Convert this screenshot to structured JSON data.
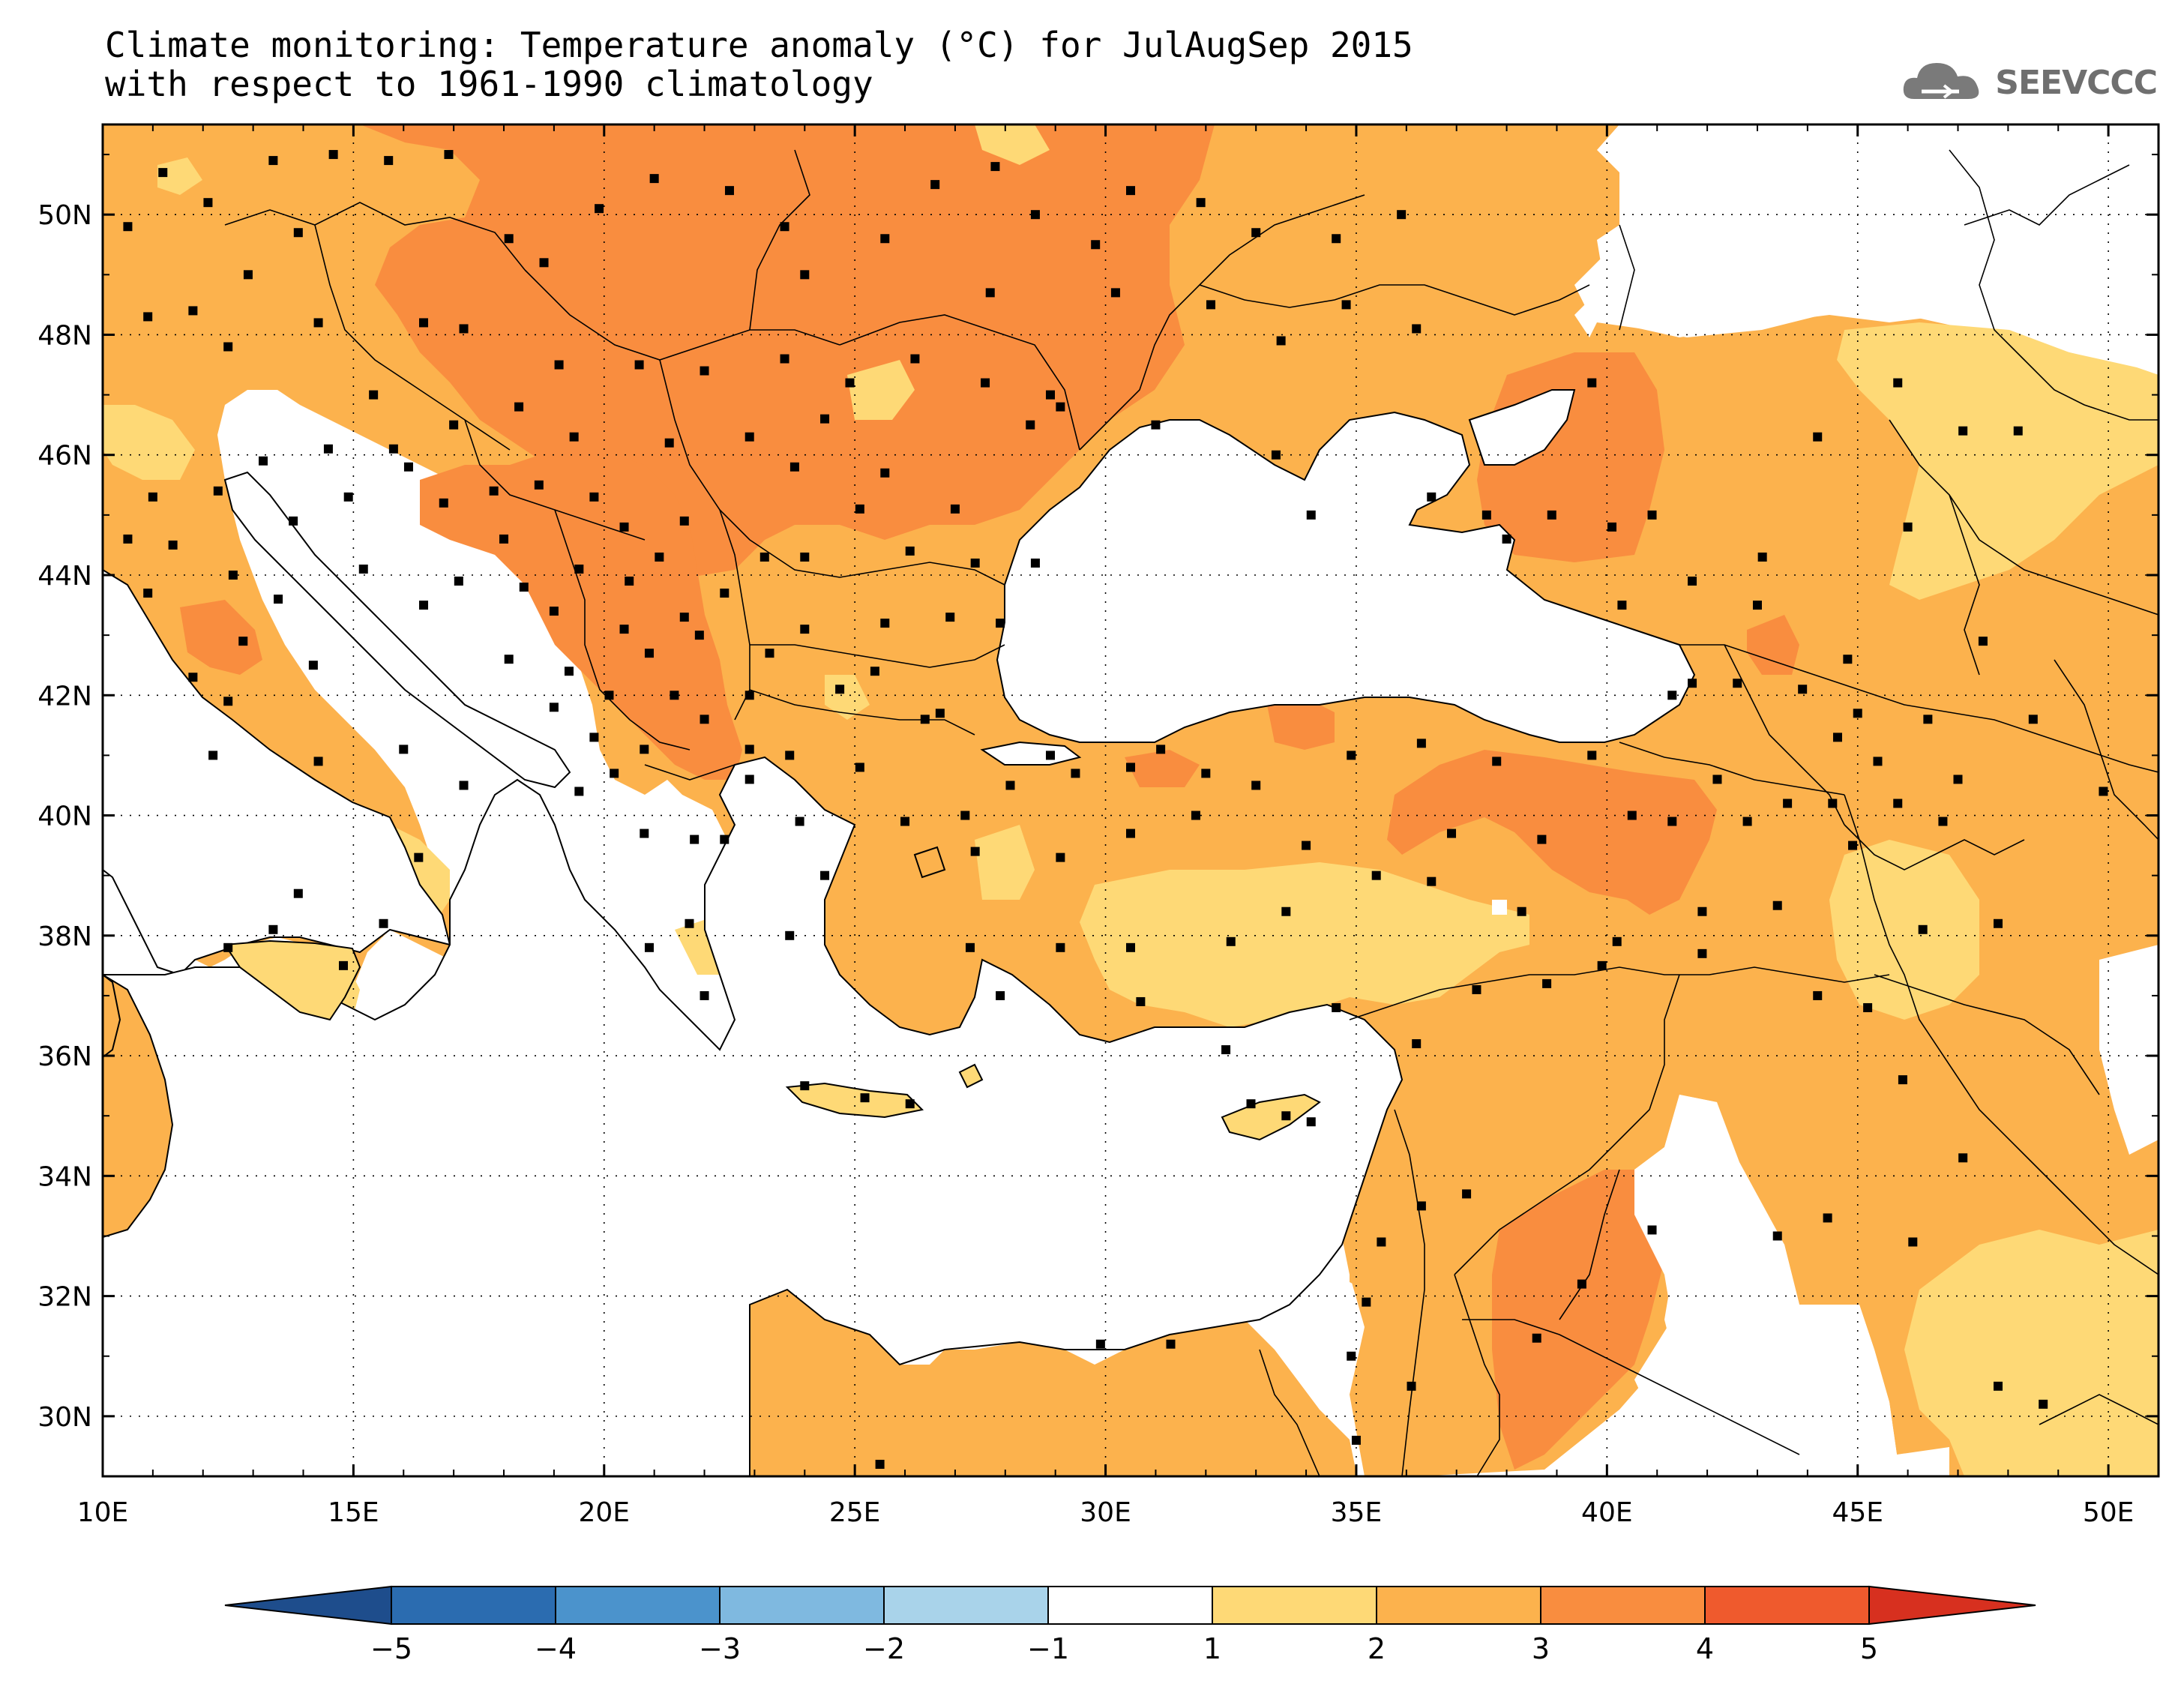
{
  "header": {
    "title_line1": "Climate monitoring: Temperature anomaly (°C) for JulAugSep 2015",
    "title_line2": "with respect to 1961-1990 climatology",
    "logo_text": "SEEVCCC"
  },
  "map": {
    "lon_ticks": [
      "10E",
      "15E",
      "20E",
      "25E",
      "30E",
      "35E",
      "40E",
      "45E",
      "50E"
    ],
    "lat_ticks": [
      "50N",
      "48N",
      "46N",
      "44N",
      "42N",
      "40N",
      "38N",
      "36N",
      "34N",
      "32N",
      "30N"
    ]
  },
  "colorbar": {
    "labels": [
      "-5",
      "-4",
      "-3",
      "-2",
      "-1",
      "1",
      "2",
      "3",
      "4",
      "5"
    ],
    "colors": [
      "#1e4d8c",
      "#2b6cb0",
      "#4b93cc",
      "#7fb9e0",
      "#a9d3ea",
      "#ffffff",
      "#fed976",
      "#fcb24d",
      "#f98d3f",
      "#ef5a2d",
      "#d7301f"
    ]
  },
  "palette": {
    "ocean": "#ffffff",
    "anomaly_1_2": "#fed976",
    "anomaly_2_3": "#fcb24d",
    "anomaly_3_4": "#f98d3f",
    "station": "#000000",
    "logo": "#6f6f6f"
  }
}
